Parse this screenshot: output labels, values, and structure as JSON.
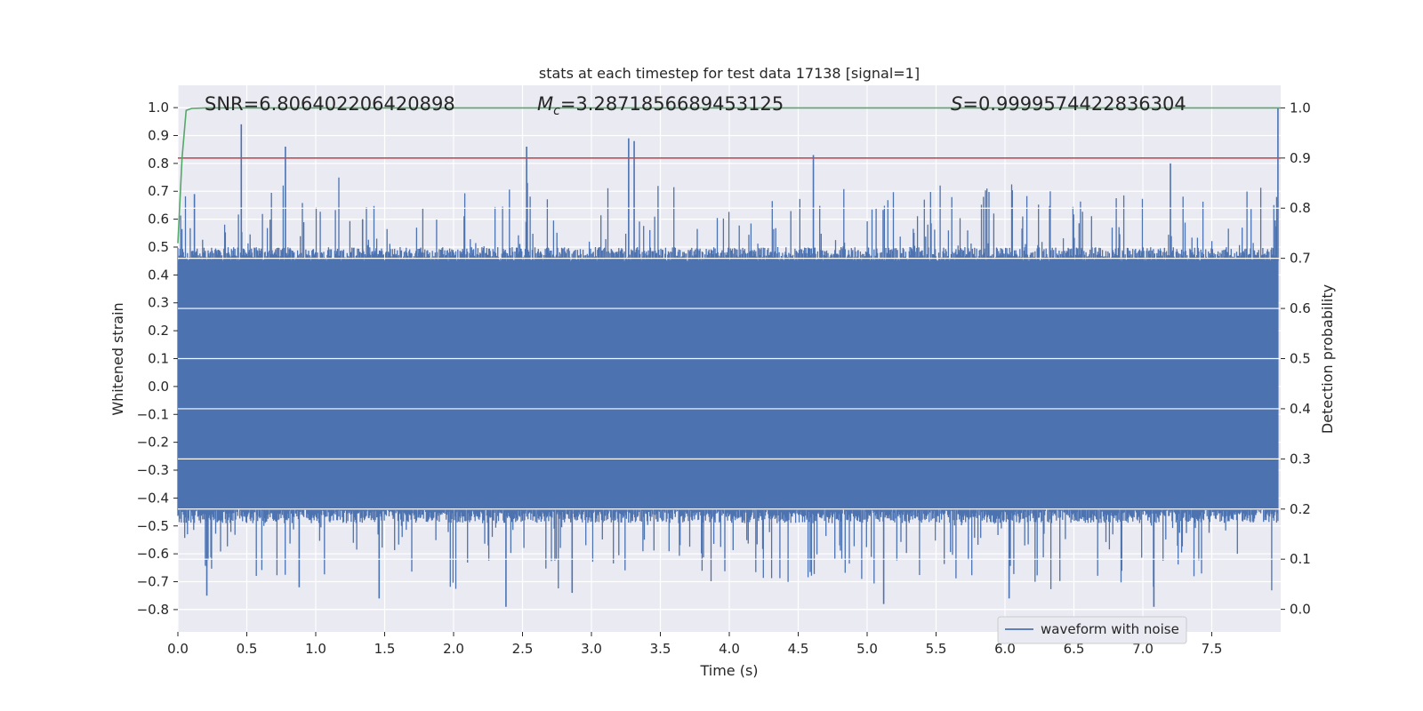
{
  "chart_data": {
    "type": "line",
    "title": "stats at each timestep for test data 17138 [signal=1]",
    "xlabel": "Time (s)",
    "ylabel": "Whitened strain",
    "y2label": "Detection probability",
    "xlim": [
      0.0,
      8.0
    ],
    "ylim": [
      -0.88,
      1.08
    ],
    "y2lim": [
      -0.045,
      1.045
    ],
    "xticks": [
      "0.0",
      "0.5",
      "1.0",
      "1.5",
      "2.0",
      "2.5",
      "3.0",
      "3.5",
      "4.0",
      "4.5",
      "5.0",
      "5.5",
      "6.0",
      "6.5",
      "7.0",
      "7.5"
    ],
    "yticks": [
      "1.0",
      "0.9",
      "0.8",
      "0.7",
      "0.6",
      "0.5",
      "0.4",
      "0.3",
      "0.2",
      "0.1",
      "0.0",
      "−0.1",
      "−0.2",
      "−0.3",
      "−0.4",
      "−0.5",
      "−0.6",
      "−0.7",
      "−0.8"
    ],
    "y2ticks": [
      "1.0",
      "0.9",
      "0.8",
      "0.7",
      "0.6",
      "0.5",
      "0.4",
      "0.3",
      "0.2",
      "0.1",
      "0.0"
    ],
    "grid": true,
    "legend": {
      "placement": "lower-right",
      "entries": [
        "waveform with noise"
      ]
    },
    "annotations": {
      "snr": "SNR=6.806402206420898",
      "mc_symbol": "M",
      "mc_sub": "c",
      "mc_value": "=3.2871856689453125",
      "s_symbol": "S",
      "s_value": "=0.9999574422836304"
    },
    "series": [
      {
        "name": "waveform with noise",
        "axis": "left",
        "color": "#4c72b0",
        "x_range": [
          0.0,
          7.98
        ],
        "band_upper": 0.45,
        "band_lower": -0.44,
        "spikes": [
          {
            "x": 0.46,
            "y": 0.94
          },
          {
            "x": 0.78,
            "y": 0.86
          },
          {
            "x": 2.53,
            "y": 0.86
          },
          {
            "x": 3.27,
            "y": 0.89
          },
          {
            "x": 3.31,
            "y": 0.88
          },
          {
            "x": 4.61,
            "y": 0.83
          },
          {
            "x": 7.98,
            "y": 1.0
          },
          {
            "x": 7.2,
            "y": 0.8
          },
          {
            "x": 1.34,
            "y": 0.6
          },
          {
            "x": 0.12,
            "y": 0.69
          },
          {
            "x": 2.38,
            "y": -0.79
          },
          {
            "x": 1.46,
            "y": -0.76
          },
          {
            "x": 0.21,
            "y": -0.75
          },
          {
            "x": 5.12,
            "y": -0.78
          },
          {
            "x": 7.08,
            "y": -0.79
          },
          {
            "x": 6.03,
            "y": -0.76
          },
          {
            "x": 2.86,
            "y": -0.74
          },
          {
            "x": 0.88,
            "y": -0.72
          }
        ]
      },
      {
        "name": "detection probability",
        "axis": "right",
        "color": "#55a868",
        "x": [
          0.0,
          0.03,
          0.06,
          0.1,
          0.2,
          8.0
        ],
        "y": [
          0.73,
          0.9,
          0.995,
          0.999,
          1.0,
          1.0
        ]
      },
      {
        "name": "threshold",
        "axis": "right",
        "color": "#c44e52",
        "x": [
          0.0,
          8.0
        ],
        "y": [
          0.9,
          0.9
        ]
      }
    ]
  }
}
